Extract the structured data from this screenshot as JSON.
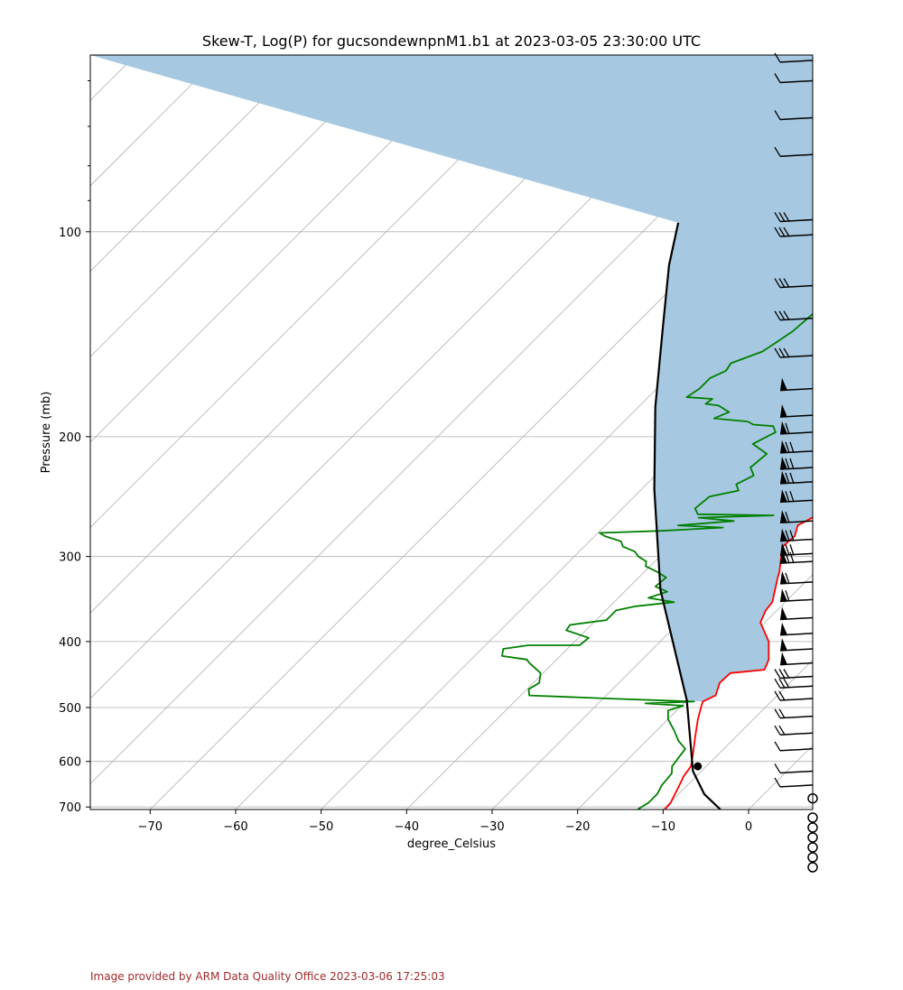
{
  "chart_data": {
    "type": "line",
    "title": "Skew-T, Log(P) for gucsondewnpnM1.b1 at 2023-03-05 23:30:00 UTC",
    "xlabel": "degree_Celsius",
    "ylabel": "Pressure (mb)",
    "xlim": [
      -77,
      7.5
    ],
    "ylim": [
      706,
      55
    ],
    "y_scale": "log",
    "grid": true,
    "x_ticks": [
      -70,
      -60,
      -50,
      -40,
      -30,
      -20,
      -10,
      0
    ],
    "x_tick_labels": [
      "−70",
      "−60",
      "−50",
      "−40",
      "−30",
      "−20",
      "−10",
      "0"
    ],
    "y_ticks": [
      100,
      200,
      300,
      400,
      500,
      600,
      700
    ],
    "y_tick_labels": [
      "100",
      "200",
      "300",
      "400",
      "500",
      "600",
      "700"
    ],
    "colors": {
      "temperature": "#ff0000",
      "dewpoint": "#008000",
      "parcel": "#000000",
      "cape_fill": "#a6c8e0",
      "grid": "#b0b0b0",
      "barbs": "#000000"
    },
    "series": [
      {
        "role": "temperature",
        "points": [
          [
            -9.8,
            706
          ],
          [
            -9.9,
            690
          ],
          [
            -10.3,
            675
          ],
          [
            -10.8,
            655
          ],
          [
            -11.5,
            630
          ],
          [
            -11.8,
            610
          ],
          [
            -13,
            585
          ],
          [
            -14.6,
            555
          ],
          [
            -16.5,
            520
          ],
          [
            -17.5,
            500
          ],
          [
            -18,
            490
          ],
          [
            -17.2,
            480
          ],
          [
            -18.2,
            460
          ],
          [
            -18.1,
            445
          ],
          [
            -14.5,
            440
          ],
          [
            -15.2,
            425
          ],
          [
            -17.3,
            400
          ],
          [
            -20.5,
            375
          ],
          [
            -21.3,
            360
          ],
          [
            -21.5,
            350
          ],
          [
            -23.5,
            325
          ],
          [
            -24.3,
            315
          ],
          [
            -25.8,
            300
          ],
          [
            -26.8,
            290
          ],
          [
            -26.6,
            280
          ],
          [
            -27.5,
            270
          ],
          [
            -26.6,
            262
          ],
          [
            -29.3,
            240
          ],
          [
            -30,
            230
          ],
          [
            -31.2,
            220
          ],
          [
            -33.5,
            207
          ],
          [
            -35.1,
            200
          ],
          [
            -35.8,
            196
          ],
          [
            -35.8,
            190
          ],
          [
            -33.3,
            183
          ],
          [
            -32,
            178
          ],
          [
            -30,
            174
          ],
          [
            -28,
            166
          ],
          [
            -25,
            160
          ],
          [
            -23,
            157
          ],
          [
            -21.8,
            150
          ],
          [
            -22.8,
            143
          ],
          [
            -25,
            134
          ],
          [
            -27.2,
            125
          ],
          [
            -28.8,
            116
          ],
          [
            -27.8,
            111
          ],
          [
            -25,
            108
          ],
          [
            -24.5,
            104
          ],
          [
            -25.8,
            98
          ],
          [
            -25,
            93
          ],
          [
            -21.5,
            87
          ],
          [
            -15.5,
            80
          ],
          [
            -13.8,
            76
          ],
          [
            -13.8,
            73
          ],
          [
            -13.3,
            70
          ],
          [
            -12.5,
            66
          ],
          [
            -8.5,
            64
          ],
          [
            -8.2,
            62
          ],
          [
            -7.8,
            58
          ],
          [
            -7.8,
            55
          ]
        ]
      },
      {
        "role": "dewpoint",
        "points": [
          [
            -13,
            706
          ],
          [
            -12.5,
            690
          ],
          [
            -12.5,
            670
          ],
          [
            -13,
            650
          ],
          [
            -13.2,
            625
          ],
          [
            -14,
            610
          ],
          [
            -14.5,
            575
          ],
          [
            -16.2,
            560
          ],
          [
            -18,
            540
          ],
          [
            -20,
            520
          ],
          [
            -21,
            505
          ],
          [
            -19.8,
            497
          ],
          [
            -24.5,
            493
          ],
          [
            -19,
            490
          ],
          [
            -29.5,
            485
          ],
          [
            -39,
            480
          ],
          [
            -39.8,
            470
          ],
          [
            -39.3,
            460
          ],
          [
            -40.3,
            445
          ],
          [
            -42.8,
            430
          ],
          [
            -43.5,
            425
          ],
          [
            -46.8,
            420
          ],
          [
            -47.5,
            410
          ],
          [
            -45,
            405
          ],
          [
            -39,
            405
          ],
          [
            -38.8,
            395
          ],
          [
            -42.3,
            385
          ],
          [
            -42.5,
            378
          ],
          [
            -38.8,
            372
          ],
          [
            -38.8,
            360
          ],
          [
            -37,
            355
          ],
          [
            -33,
            350
          ],
          [
            -36.5,
            345
          ],
          [
            -35,
            338
          ],
          [
            -37,
            332
          ],
          [
            -36.8,
            322
          ],
          [
            -38.5,
            316
          ],
          [
            -40.5,
            310
          ],
          [
            -41,
            305
          ],
          [
            -42.5,
            300
          ],
          [
            -43.5,
            295
          ],
          [
            -45.5,
            290
          ],
          [
            -46.3,
            285
          ],
          [
            -48.8,
            280
          ],
          [
            -49.8,
            277
          ],
          [
            -42.8,
            275
          ],
          [
            -36,
            272
          ],
          [
            -41.5,
            270
          ],
          [
            -35.5,
            266
          ],
          [
            -40,
            263
          ],
          [
            -31.5,
            261
          ],
          [
            -40.5,
            260
          ],
          [
            -41.5,
            255
          ],
          [
            -41.2,
            245
          ],
          [
            -38.5,
            240
          ],
          [
            -39.5,
            235
          ],
          [
            -38.5,
            228
          ],
          [
            -39.8,
            222
          ],
          [
            -39.5,
            212
          ],
          [
            -42.3,
            205
          ],
          [
            -41,
            197
          ],
          [
            -42,
            193
          ],
          [
            -44.5,
            192
          ],
          [
            -45.5,
            190
          ],
          [
            -49.8,
            188
          ],
          [
            -48.8,
            184
          ],
          [
            -50.8,
            180
          ],
          [
            -52.5,
            179
          ],
          [
            -52.3,
            176
          ],
          [
            -55.5,
            175
          ],
          [
            -55,
            170
          ],
          [
            -55,
            164
          ],
          [
            -54,
            160
          ],
          [
            -54.3,
            156
          ],
          [
            -52,
            150
          ],
          [
            -51.5,
            146
          ],
          [
            -50.8,
            140
          ],
          [
            -50.5,
            132
          ],
          [
            -50,
            127
          ],
          [
            -49.5,
            120
          ],
          [
            -49.5,
            114
          ],
          [
            -49.3,
            108
          ],
          [
            -48,
            102
          ],
          [
            -47.5,
            97
          ],
          [
            -47.5,
            92
          ],
          [
            -47,
            87
          ],
          [
            -45.5,
            82
          ],
          [
            -44,
            78
          ],
          [
            -43.5,
            75
          ],
          [
            -42.5,
            72
          ],
          [
            -41.8,
            69
          ],
          [
            -41,
            66
          ],
          [
            -40.5,
            63
          ],
          [
            -39.5,
            61
          ],
          [
            -38.5,
            59
          ],
          [
            -37,
            55
          ]
        ]
      },
      {
        "role": "parcel",
        "points": [
          [
            -3.3,
            706
          ],
          [
            -7,
            670
          ],
          [
            -11,
            620
          ],
          [
            -20,
            488
          ],
          [
            -36,
            336
          ],
          [
            -48.5,
            239
          ],
          [
            -58,
            181
          ],
          [
            -66.5,
            138
          ],
          [
            -73,
            112
          ],
          [
            -76.9,
            97
          ]
        ]
      }
    ],
    "lcl": {
      "temperature": -11,
      "pressure": 610
    },
    "wind_barbs": [
      {
        "pressure": 56,
        "barb": "flag+half"
      },
      {
        "pressure": 60,
        "barb": "long"
      },
      {
        "pressure": 68,
        "barb": "half+long"
      },
      {
        "pressure": 77,
        "barb": "long+half"
      },
      {
        "pressure": 96,
        "barb": "3long"
      },
      {
        "pressure": 101,
        "barb": "3long"
      },
      {
        "pressure": 120,
        "barb": "3long"
      },
      {
        "pressure": 134,
        "barb": "3long"
      },
      {
        "pressure": 152,
        "barb": "3long"
      },
      {
        "pressure": 170,
        "barb": "pennant"
      },
      {
        "pressure": 186,
        "barb": "pennant"
      },
      {
        "pressure": 197,
        "barb": "pennant+long"
      },
      {
        "pressure": 210,
        "barb": "pennant+2long"
      },
      {
        "pressure": 222,
        "barb": "pennant+2long"
      },
      {
        "pressure": 233,
        "barb": "pennant+2long"
      },
      {
        "pressure": 248,
        "barb": "pennant+2long"
      },
      {
        "pressure": 266,
        "barb": "pennant+long"
      },
      {
        "pressure": 283,
        "barb": "pennant+2long"
      },
      {
        "pressure": 297,
        "barb": "pennant+2long"
      },
      {
        "pressure": 305,
        "barb": "pennant+2long"
      },
      {
        "pressure": 327,
        "barb": "pennant+long"
      },
      {
        "pressure": 347,
        "barb": "pennant+long"
      },
      {
        "pressure": 369,
        "barb": "pennant"
      },
      {
        "pressure": 389,
        "barb": "pennant"
      },
      {
        "pressure": 410,
        "barb": "pennant"
      },
      {
        "pressure": 430,
        "barb": "pennant"
      },
      {
        "pressure": 450,
        "barb": "3long"
      },
      {
        "pressure": 465,
        "barb": "3long"
      },
      {
        "pressure": 485,
        "barb": "2long"
      },
      {
        "pressure": 515,
        "barb": "2long"
      },
      {
        "pressure": 545,
        "barb": "2long"
      },
      {
        "pressure": 575,
        "barb": "long"
      },
      {
        "pressure": 620,
        "barb": "long"
      },
      {
        "pressure": 650,
        "barb": "short"
      },
      {
        "pressure": 680,
        "barb": "calm"
      }
    ],
    "calm_below_axis_count": 6
  },
  "credit": "Image provided by ARM Data Quality Office 2023-03-06 17:25:03"
}
